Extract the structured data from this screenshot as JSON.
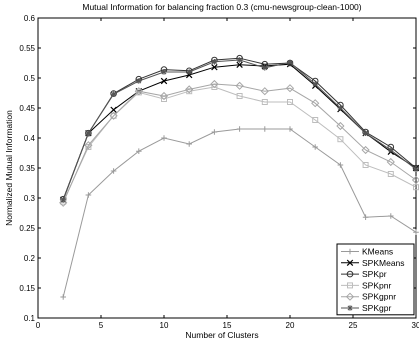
{
  "chart_data": {
    "type": "line",
    "title": "Mutual Information for balancing fraction 0.3 (cmu-newsgroup-clean-1000)",
    "xlabel": "Number of Clusters",
    "ylabel": "Normalized Mutual Information",
    "xlim": [
      0,
      30
    ],
    "ylim": [
      0.1,
      0.6
    ],
    "xticks": [
      "0",
      "5",
      "10",
      "15",
      "20",
      "25",
      "30"
    ],
    "yticks": [
      "0.1",
      "0.15",
      "0.2",
      "0.25",
      "0.3",
      "0.35",
      "0.4",
      "0.45",
      "0.5",
      "0.55",
      "0.6"
    ],
    "grid": false,
    "legend_position": "bottom-right",
    "x": [
      2,
      4,
      6,
      8,
      10,
      12,
      14,
      16,
      18,
      20,
      22,
      24,
      26,
      28,
      30
    ],
    "series": [
      {
        "name": "KMeans",
        "marker": "plus",
        "color": "#9a9a9a",
        "values": [
          0.135,
          0.305,
          0.345,
          0.378,
          0.4,
          0.39,
          0.41,
          0.415,
          0.415,
          0.415,
          0.385,
          0.355,
          0.268,
          0.27,
          0.243
        ]
      },
      {
        "name": "SPKMeans",
        "marker": "x",
        "color": "#000000",
        "values": [
          0.297,
          0.408,
          0.447,
          0.478,
          0.495,
          0.505,
          0.518,
          0.522,
          0.52,
          0.523,
          0.487,
          0.448,
          0.408,
          0.377,
          0.35
        ]
      },
      {
        "name": "SPKpr",
        "marker": "circle",
        "color": "#333333",
        "values": [
          0.298,
          0.408,
          0.474,
          0.498,
          0.514,
          0.512,
          0.53,
          0.533,
          0.523,
          0.525,
          0.495,
          0.455,
          0.41,
          0.385,
          0.35
        ]
      },
      {
        "name": "SPKpnr",
        "marker": "square",
        "color": "#bdbdbd",
        "values": [
          0.294,
          0.385,
          0.437,
          0.476,
          0.465,
          0.478,
          0.485,
          0.47,
          0.46,
          0.46,
          0.43,
          0.398,
          0.355,
          0.34,
          0.318
        ]
      },
      {
        "name": "SPKgpnr",
        "marker": "diamond",
        "color": "#a6a6a6",
        "values": [
          0.292,
          0.388,
          0.437,
          0.478,
          0.47,
          0.481,
          0.49,
          0.487,
          0.478,
          0.483,
          0.458,
          0.42,
          0.38,
          0.36,
          0.33
        ]
      },
      {
        "name": "SPKgpr",
        "marker": "asterisk",
        "color": "#555555",
        "values": [
          0.297,
          0.408,
          0.473,
          0.495,
          0.51,
          0.51,
          0.527,
          0.53,
          0.517,
          0.526,
          0.49,
          0.45,
          0.408,
          0.38,
          0.348
        ]
      }
    ]
  }
}
